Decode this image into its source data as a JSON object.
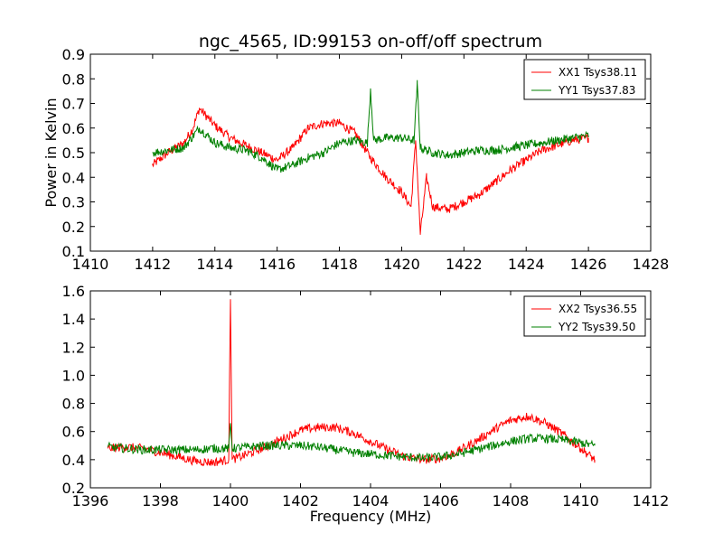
{
  "figure": {
    "title": "ngc_4565, ID:99153 on-off/off spectrum"
  },
  "chart_data": [
    {
      "type": "line",
      "title": "ngc_4565, ID:99153 on-off/off spectrum",
      "xlabel": "",
      "ylabel": "Power in Kelvin",
      "xlim": [
        1410,
        1428
      ],
      "ylim": [
        0.1,
        0.9
      ],
      "xticks": [
        1410,
        1412,
        1414,
        1416,
        1418,
        1420,
        1422,
        1424,
        1426,
        1428
      ],
      "yticks": [
        0.1,
        0.2,
        0.3,
        0.4,
        0.5,
        0.6,
        0.7,
        0.8,
        0.9
      ],
      "xtick_labels": [
        "1410",
        "1412",
        "1414",
        "1416",
        "1418",
        "1420",
        "1422",
        "1424",
        "1426",
        "1428"
      ],
      "ytick_labels": [
        "0.1",
        "0.2",
        "0.3",
        "0.4",
        "0.5",
        "0.6",
        "0.7",
        "0.8",
        "0.9"
      ],
      "legend_position": "top-right",
      "grid": false,
      "series": [
        {
          "name": "XX1 Tsys38.11",
          "color": "#ff0000",
          "x": [
            1412.0,
            1412.5,
            1413.0,
            1413.3,
            1413.5,
            1414.0,
            1414.5,
            1415.0,
            1415.5,
            1416.0,
            1416.5,
            1417.0,
            1417.5,
            1418.0,
            1418.5,
            1419.0,
            1419.5,
            1420.0,
            1420.3,
            1420.45,
            1420.6,
            1420.8,
            1421.0,
            1421.5,
            1422.0,
            1422.5,
            1423.0,
            1423.5,
            1424.0,
            1424.5,
            1425.0,
            1425.5,
            1426.0
          ],
          "y": [
            0.45,
            0.5,
            0.54,
            0.6,
            0.68,
            0.61,
            0.56,
            0.53,
            0.5,
            0.47,
            0.52,
            0.6,
            0.62,
            0.62,
            0.58,
            0.48,
            0.4,
            0.34,
            0.28,
            0.55,
            0.17,
            0.4,
            0.28,
            0.27,
            0.3,
            0.33,
            0.38,
            0.43,
            0.47,
            0.51,
            0.53,
            0.55,
            0.56
          ]
        },
        {
          "name": "YY1 Tsys37.83",
          "color": "#008000",
          "x": [
            1412.0,
            1412.5,
            1413.0,
            1413.5,
            1414.0,
            1414.5,
            1415.0,
            1415.5,
            1416.0,
            1416.5,
            1417.0,
            1417.5,
            1418.0,
            1418.5,
            1418.9,
            1419.0,
            1419.1,
            1419.5,
            1420.0,
            1420.4,
            1420.5,
            1420.6,
            1420.8,
            1421.0,
            1421.5,
            1422.0,
            1422.5,
            1423.0,
            1423.5,
            1424.0,
            1424.5,
            1425.0,
            1425.5,
            1426.0
          ],
          "y": [
            0.5,
            0.51,
            0.52,
            0.6,
            0.54,
            0.52,
            0.51,
            0.48,
            0.43,
            0.45,
            0.48,
            0.5,
            0.54,
            0.55,
            0.54,
            0.76,
            0.55,
            0.56,
            0.56,
            0.55,
            0.78,
            0.52,
            0.51,
            0.5,
            0.49,
            0.5,
            0.51,
            0.51,
            0.52,
            0.53,
            0.54,
            0.55,
            0.56,
            0.57
          ]
        }
      ]
    },
    {
      "type": "line",
      "title": "",
      "xlabel": "Frequency (MHz)",
      "ylabel": "",
      "xlim": [
        1396,
        1412
      ],
      "ylim": [
        0.2,
        1.6
      ],
      "xticks": [
        1396,
        1398,
        1400,
        1402,
        1404,
        1406,
        1408,
        1410,
        1412
      ],
      "yticks": [
        0.2,
        0.4,
        0.6,
        0.8,
        1.0,
        1.2,
        1.4,
        1.6
      ],
      "xtick_labels": [
        "1396",
        "1398",
        "1400",
        "1402",
        "1404",
        "1406",
        "1408",
        "1410",
        "1412"
      ],
      "ytick_labels": [
        "0.2",
        "0.4",
        "0.6",
        "0.8",
        "1.0",
        "1.2",
        "1.4",
        "1.6"
      ],
      "legend_position": "top-right",
      "grid": false,
      "series": [
        {
          "name": "XX2 Tsys36.55",
          "color": "#ff0000",
          "x": [
            1396.5,
            1397.0,
            1397.5,
            1398.0,
            1398.5,
            1399.0,
            1399.5,
            1399.95,
            1400.0,
            1400.05,
            1400.5,
            1401.0,
            1401.5,
            1402.0,
            1402.5,
            1403.0,
            1403.5,
            1404.0,
            1404.5,
            1405.0,
            1405.5,
            1406.0,
            1406.5,
            1407.0,
            1407.5,
            1408.0,
            1408.5,
            1409.0,
            1409.5,
            1410.0,
            1410.4
          ],
          "y": [
            0.48,
            0.49,
            0.48,
            0.45,
            0.42,
            0.39,
            0.38,
            0.4,
            1.54,
            0.4,
            0.44,
            0.49,
            0.55,
            0.61,
            0.63,
            0.63,
            0.59,
            0.53,
            0.47,
            0.42,
            0.4,
            0.41,
            0.46,
            0.53,
            0.61,
            0.68,
            0.71,
            0.66,
            0.58,
            0.48,
            0.4
          ]
        },
        {
          "name": "YY2 Tsys39.50",
          "color": "#008000",
          "x": [
            1396.5,
            1397.0,
            1397.5,
            1398.0,
            1398.5,
            1399.0,
            1399.5,
            1399.95,
            1400.0,
            1400.05,
            1400.5,
            1401.0,
            1401.5,
            1402.0,
            1402.5,
            1403.0,
            1403.5,
            1404.0,
            1404.5,
            1405.0,
            1405.5,
            1406.0,
            1406.5,
            1407.0,
            1407.5,
            1408.0,
            1408.5,
            1409.0,
            1409.5,
            1410.0,
            1410.4
          ],
          "y": [
            0.49,
            0.48,
            0.47,
            0.47,
            0.47,
            0.47,
            0.48,
            0.48,
            0.66,
            0.48,
            0.49,
            0.5,
            0.5,
            0.5,
            0.49,
            0.47,
            0.45,
            0.44,
            0.43,
            0.42,
            0.41,
            0.42,
            0.44,
            0.47,
            0.5,
            0.53,
            0.55,
            0.55,
            0.54,
            0.52,
            0.5
          ]
        }
      ]
    }
  ]
}
